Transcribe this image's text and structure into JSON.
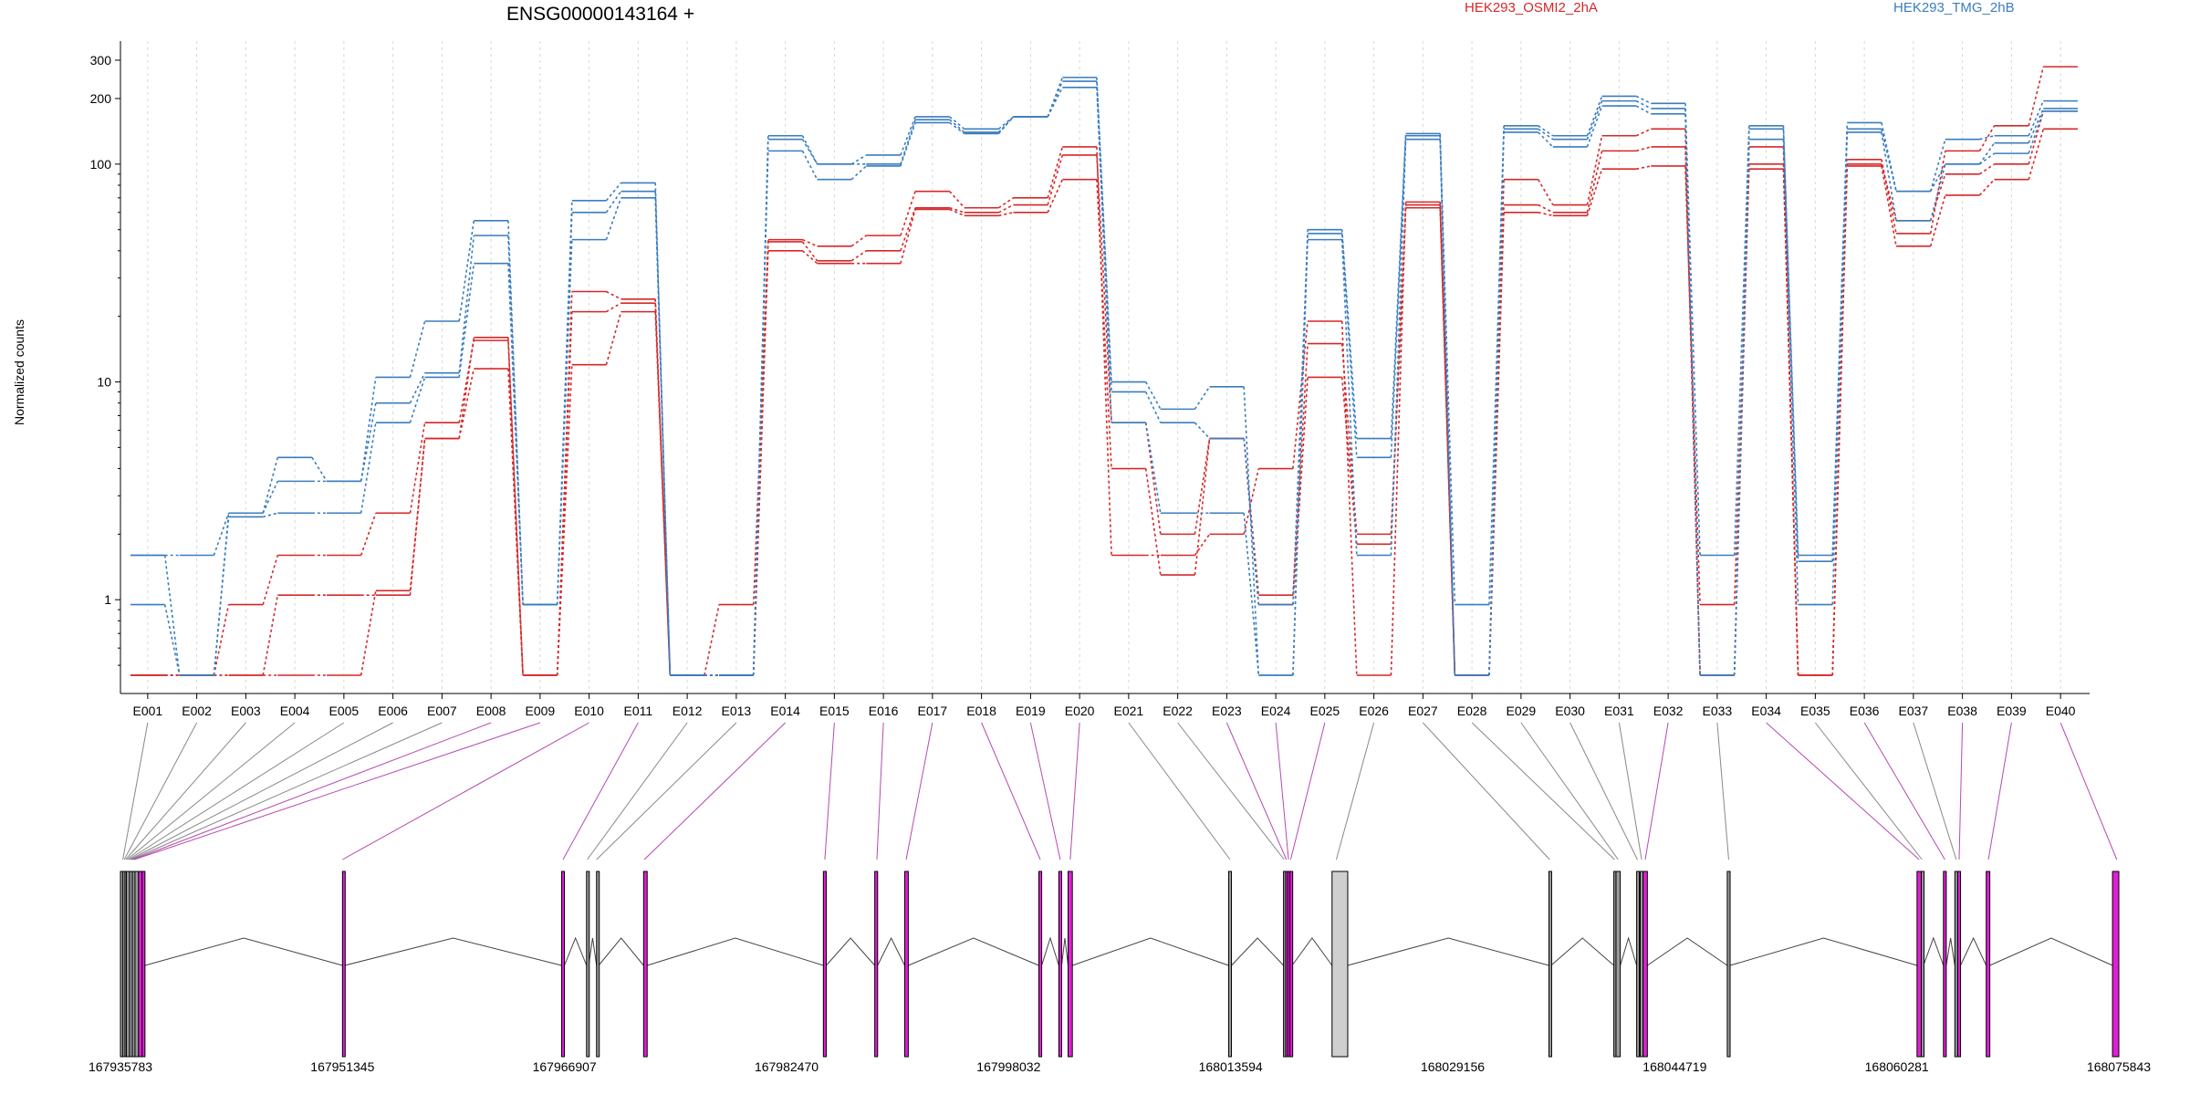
{
  "chart_data": {
    "type": "line",
    "title": "ENSG00000143164 +",
    "ylabel": "Normalized counts",
    "xlabel": "",
    "yscale": "log",
    "ylim": [
      0.45,
      350
    ],
    "yticks": [
      1,
      10,
      100,
      200,
      300
    ],
    "grid": "vertical dotted lines at exon bins",
    "legend_placement": "top",
    "categories": [
      "E001",
      "E002",
      "E003",
      "E004",
      "E005",
      "E006",
      "E007",
      "E008",
      "E009",
      "E010",
      "E011",
      "E012",
      "E013",
      "E014",
      "E015",
      "E016",
      "E017",
      "E018",
      "E019",
      "E020",
      "E021",
      "E022",
      "E023",
      "E024",
      "E025",
      "E026",
      "E027",
      "E028",
      "E029",
      "E030",
      "E031",
      "E032",
      "E033",
      "E034",
      "E035",
      "E036",
      "E037",
      "E038",
      "E039",
      "E040"
    ],
    "groups": [
      {
        "name": "HEK293_OSMI2_2hA",
        "color": "#d62728"
      },
      {
        "name": "HEK293_TMG_2hB",
        "color": "#3a7dbf"
      }
    ],
    "series": [
      {
        "group": 0,
        "values": [
          0.45,
          0.45,
          0.45,
          0.45,
          0.45,
          1.1,
          5.5,
          16,
          0.45,
          26,
          24,
          0.45,
          0.45,
          45,
          42,
          47,
          75,
          63,
          70,
          120,
          1.6,
          1.6,
          2,
          4,
          19,
          0.45,
          67,
          0.45,
          85,
          65,
          135,
          145,
          0.45,
          120,
          0.45,
          105,
          48,
          115,
          150,
          280
        ]
      },
      {
        "group": 0,
        "values": [
          0.45,
          0.45,
          0.95,
          1.6,
          1.6,
          2.5,
          6.5,
          15.5,
          0.45,
          21,
          23,
          0.45,
          0.95,
          44,
          36,
          40,
          63,
          60,
          65,
          110,
          6.5,
          2,
          5.5,
          1.05,
          15,
          2,
          65,
          0.45,
          65,
          60,
          115,
          120,
          0.45,
          100,
          0.45,
          100,
          55,
          90,
          100,
          175
        ]
      },
      {
        "group": 0,
        "values": [
          0.45,
          0.45,
          0.45,
          1.05,
          1.05,
          1.05,
          5.5,
          11.5,
          0.45,
          12,
          21,
          0.45,
          0.45,
          40,
          35,
          35,
          62,
          58,
          60,
          85,
          4,
          1.3,
          5.5,
          0.95,
          10.5,
          1.8,
          63,
          0.45,
          60,
          58,
          95,
          98,
          0.95,
          95,
          0.45,
          98,
          42,
          72,
          85,
          145
        ]
      },
      {
        "group": 1,
        "values": [
          1.6,
          1.6,
          2.5,
          4.5,
          3.5,
          10.5,
          19,
          55,
          0.95,
          68,
          82,
          0.45,
          0.45,
          135,
          100,
          110,
          165,
          145,
          165,
          250,
          10,
          7.5,
          9.5,
          0.45,
          50,
          5.5,
          138,
          0.95,
          150,
          135,
          205,
          190,
          1.6,
          150,
          1.6,
          155,
          75,
          130,
          135,
          195
        ]
      },
      {
        "group": 1,
        "values": [
          1.6,
          0.45,
          2.5,
          3.5,
          3.5,
          8,
          11,
          47,
          0.95,
          60,
          75,
          0.45,
          0.45,
          130,
          100,
          100,
          160,
          140,
          165,
          240,
          9,
          6.5,
          5.5,
          0.95,
          48,
          4.5,
          135,
          0.45,
          145,
          130,
          195,
          180,
          0.45,
          145,
          1.5,
          145,
          75,
          100,
          125,
          180
        ]
      },
      {
        "group": 1,
        "values": [
          0.95,
          0.45,
          2.4,
          2.5,
          2.5,
          6.5,
          10.5,
          35,
          0.95,
          45,
          70,
          0.45,
          0.45,
          115,
          85,
          98,
          155,
          138,
          165,
          225,
          6.5,
          2.5,
          2.5,
          0.45,
          45,
          1.6,
          130,
          0.45,
          140,
          120,
          185,
          170,
          0.45,
          130,
          0.95,
          140,
          55,
          100,
          112,
          175
        ]
      }
    ],
    "coordinate_ticks": [
      "167935783",
      "167951345",
      "167966907",
      "167982470",
      "167998032",
      "168013594",
      "168029156",
      "168044719",
      "168060281",
      "168075843"
    ],
    "coordinate_range": [
      167935783,
      168075843
    ],
    "exon_track": {
      "bins": [
        {
          "id": "E001",
          "start": 167935783,
          "end": 167935950,
          "fill": "gray",
          "bin_mark": 167935950
        },
        {
          "id": "E002",
          "start": 167935950,
          "end": 167936100,
          "fill": "gray",
          "bin_mark": 167936050
        },
        {
          "id": "E003",
          "start": 167936100,
          "end": 167936200,
          "fill": "gray",
          "bin_mark": 167936150
        },
        {
          "id": "E004",
          "start": 167936200,
          "end": 167936420,
          "fill": "gray",
          "bin_mark": 167936250
        },
        {
          "id": "E005",
          "start": 167936420,
          "end": 167936620,
          "fill": "gray",
          "bin_mark": 167936350
        },
        {
          "id": "E006",
          "start": 167936620,
          "end": 167936800,
          "fill": "gray",
          "bin_mark": 167936450
        },
        {
          "id": "E007",
          "start": 167936800,
          "end": 167937050,
          "fill": "gray",
          "bin_mark": 167936550
        },
        {
          "id": "E008",
          "start": 167937050,
          "end": 167937300,
          "fill": "magenta",
          "bin_mark": 167936650
        },
        {
          "id": "E009",
          "start": 167937300,
          "end": 167937500,
          "fill": "magenta",
          "bin_mark": 167936750
        },
        {
          "id": "E010",
          "start": 167951345,
          "end": 167951500,
          "fill": "magenta",
          "bin_mark": 167951345
        },
        {
          "id": "E011",
          "start": 167966700,
          "end": 167966900,
          "fill": "magenta",
          "bin_mark": 167966800
        },
        {
          "id": "E012",
          "start": 167968450,
          "end": 167968600,
          "fill": "gray",
          "bin_mark": 167968500
        },
        {
          "id": "E013",
          "start": 167969150,
          "end": 167969300,
          "fill": "gray",
          "bin_mark": 167969150
        },
        {
          "id": "E014",
          "start": 167972450,
          "end": 167972700,
          "fill": "magenta",
          "bin_mark": 167972500
        },
        {
          "id": "E015",
          "start": 167985050,
          "end": 167985250,
          "fill": "magenta",
          "bin_mark": 167985150
        },
        {
          "id": "E016",
          "start": 167988650,
          "end": 167988850,
          "fill": "magenta",
          "bin_mark": 167988800
        },
        {
          "id": "E017",
          "start": 167990750,
          "end": 167991000,
          "fill": "magenta",
          "bin_mark": 167990850
        },
        {
          "id": "E018",
          "start": 168000150,
          "end": 168000350,
          "fill": "magenta",
          "bin_mark": 168000250
        },
        {
          "id": "E019",
          "start": 168001550,
          "end": 168001750,
          "fill": "magenta",
          "bin_mark": 168001650
        },
        {
          "id": "E020",
          "start": 168002200,
          "end": 168002500,
          "fill": "magenta",
          "bin_mark": 168002350
        },
        {
          "id": "E021",
          "start": 168013450,
          "end": 168013650,
          "fill": "gray",
          "bin_mark": 168013550
        },
        {
          "id": "E022",
          "start": 168017300,
          "end": 168017450,
          "fill": "gray",
          "bin_mark": 168017350
        },
        {
          "id": "E023",
          "start": 168017450,
          "end": 168017600,
          "fill": "magenta",
          "bin_mark": 168017500
        },
        {
          "id": "E024",
          "start": 168017600,
          "end": 168017750,
          "fill": "magenta",
          "bin_mark": 168017650
        },
        {
          "id": "E025",
          "start": 168017750,
          "end": 168017900,
          "fill": "magenta",
          "bin_mark": 168017800
        },
        {
          "id": "E026",
          "start": 168020700,
          "end": 168021800,
          "fill": "lightgray",
          "bin_mark": 168021000
        },
        {
          "id": "E027",
          "start": 168035900,
          "end": 168036050,
          "fill": "gray",
          "bin_mark": 168035950
        },
        {
          "id": "E028",
          "start": 168040450,
          "end": 168040600,
          "fill": "gray",
          "bin_mark": 168040500
        },
        {
          "id": "E029",
          "start": 168040600,
          "end": 168040900,
          "fill": "gray",
          "bin_mark": 168040750
        },
        {
          "id": "E030",
          "start": 168042050,
          "end": 168042200,
          "fill": "gray",
          "bin_mark": 168042100
        },
        {
          "id": "E031",
          "start": 168042300,
          "end": 168042500,
          "fill": "gray",
          "bin_mark": 168042400
        },
        {
          "id": "E032",
          "start": 168042500,
          "end": 168042800,
          "fill": "magenta",
          "bin_mark": 168042650
        },
        {
          "id": "E033",
          "start": 168048400,
          "end": 168048600,
          "fill": "gray",
          "bin_mark": 168048500
        },
        {
          "id": "E034",
          "start": 168061700,
          "end": 168062000,
          "fill": "magenta",
          "bin_mark": 168061850
        },
        {
          "id": "E035",
          "start": 168062000,
          "end": 168062150,
          "fill": "gray",
          "bin_mark": 168062050
        },
        {
          "id": "E036",
          "start": 168063550,
          "end": 168063750,
          "fill": "magenta",
          "bin_mark": 168063650
        },
        {
          "id": "E037",
          "start": 168064350,
          "end": 168064550,
          "fill": "gray",
          "bin_mark": 168064450
        },
        {
          "id": "E038",
          "start": 168064550,
          "end": 168064750,
          "fill": "magenta",
          "bin_mark": 168064650
        },
        {
          "id": "E039",
          "start": 168066550,
          "end": 168066800,
          "fill": "magenta",
          "bin_mark": 168066700
        },
        {
          "id": "E040",
          "start": 168075400,
          "end": 168075843,
          "fill": "magenta",
          "bin_mark": 168075700
        }
      ]
    }
  }
}
